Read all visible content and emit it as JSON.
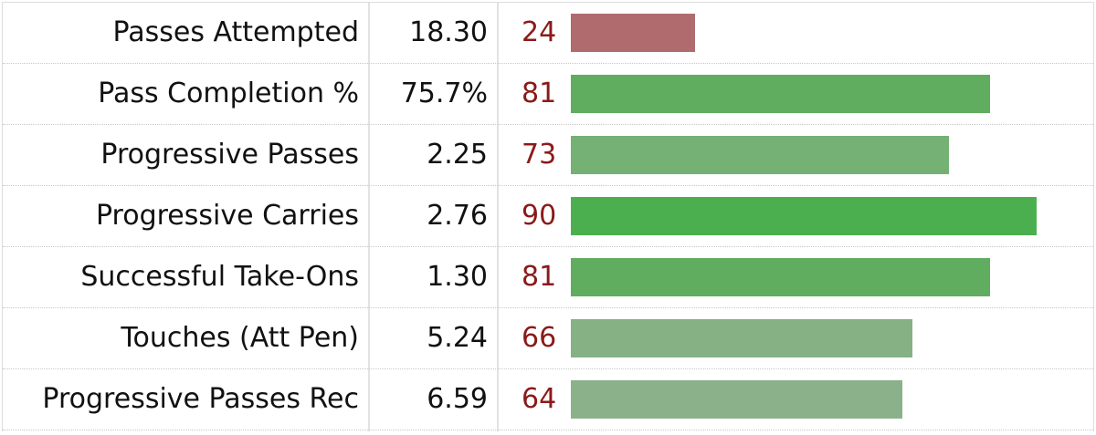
{
  "table": {
    "rows": [
      {
        "label": "Passes Attempted",
        "per90": "18.30",
        "percentile": 24,
        "color": "#b06b6e"
      },
      {
        "label": "Pass Completion %",
        "per90": "75.7%",
        "percentile": 81,
        "color": "#60ad5f"
      },
      {
        "label": "Progressive Passes",
        "per90": "2.25",
        "percentile": 73,
        "color": "#75b075"
      },
      {
        "label": "Progressive Carries",
        "per90": "2.76",
        "percentile": 90,
        "color": "#4caf4f"
      },
      {
        "label": "Successful Take-Ons",
        "per90": "1.30",
        "percentile": 81,
        "color": "#60ad5f"
      },
      {
        "label": "Touches (Att Pen)",
        "per90": "5.24",
        "percentile": 66,
        "color": "#86b185"
      },
      {
        "label": "Progressive Passes Rec",
        "per90": "6.59",
        "percentile": 64,
        "color": "#8bb18a"
      }
    ]
  }
}
